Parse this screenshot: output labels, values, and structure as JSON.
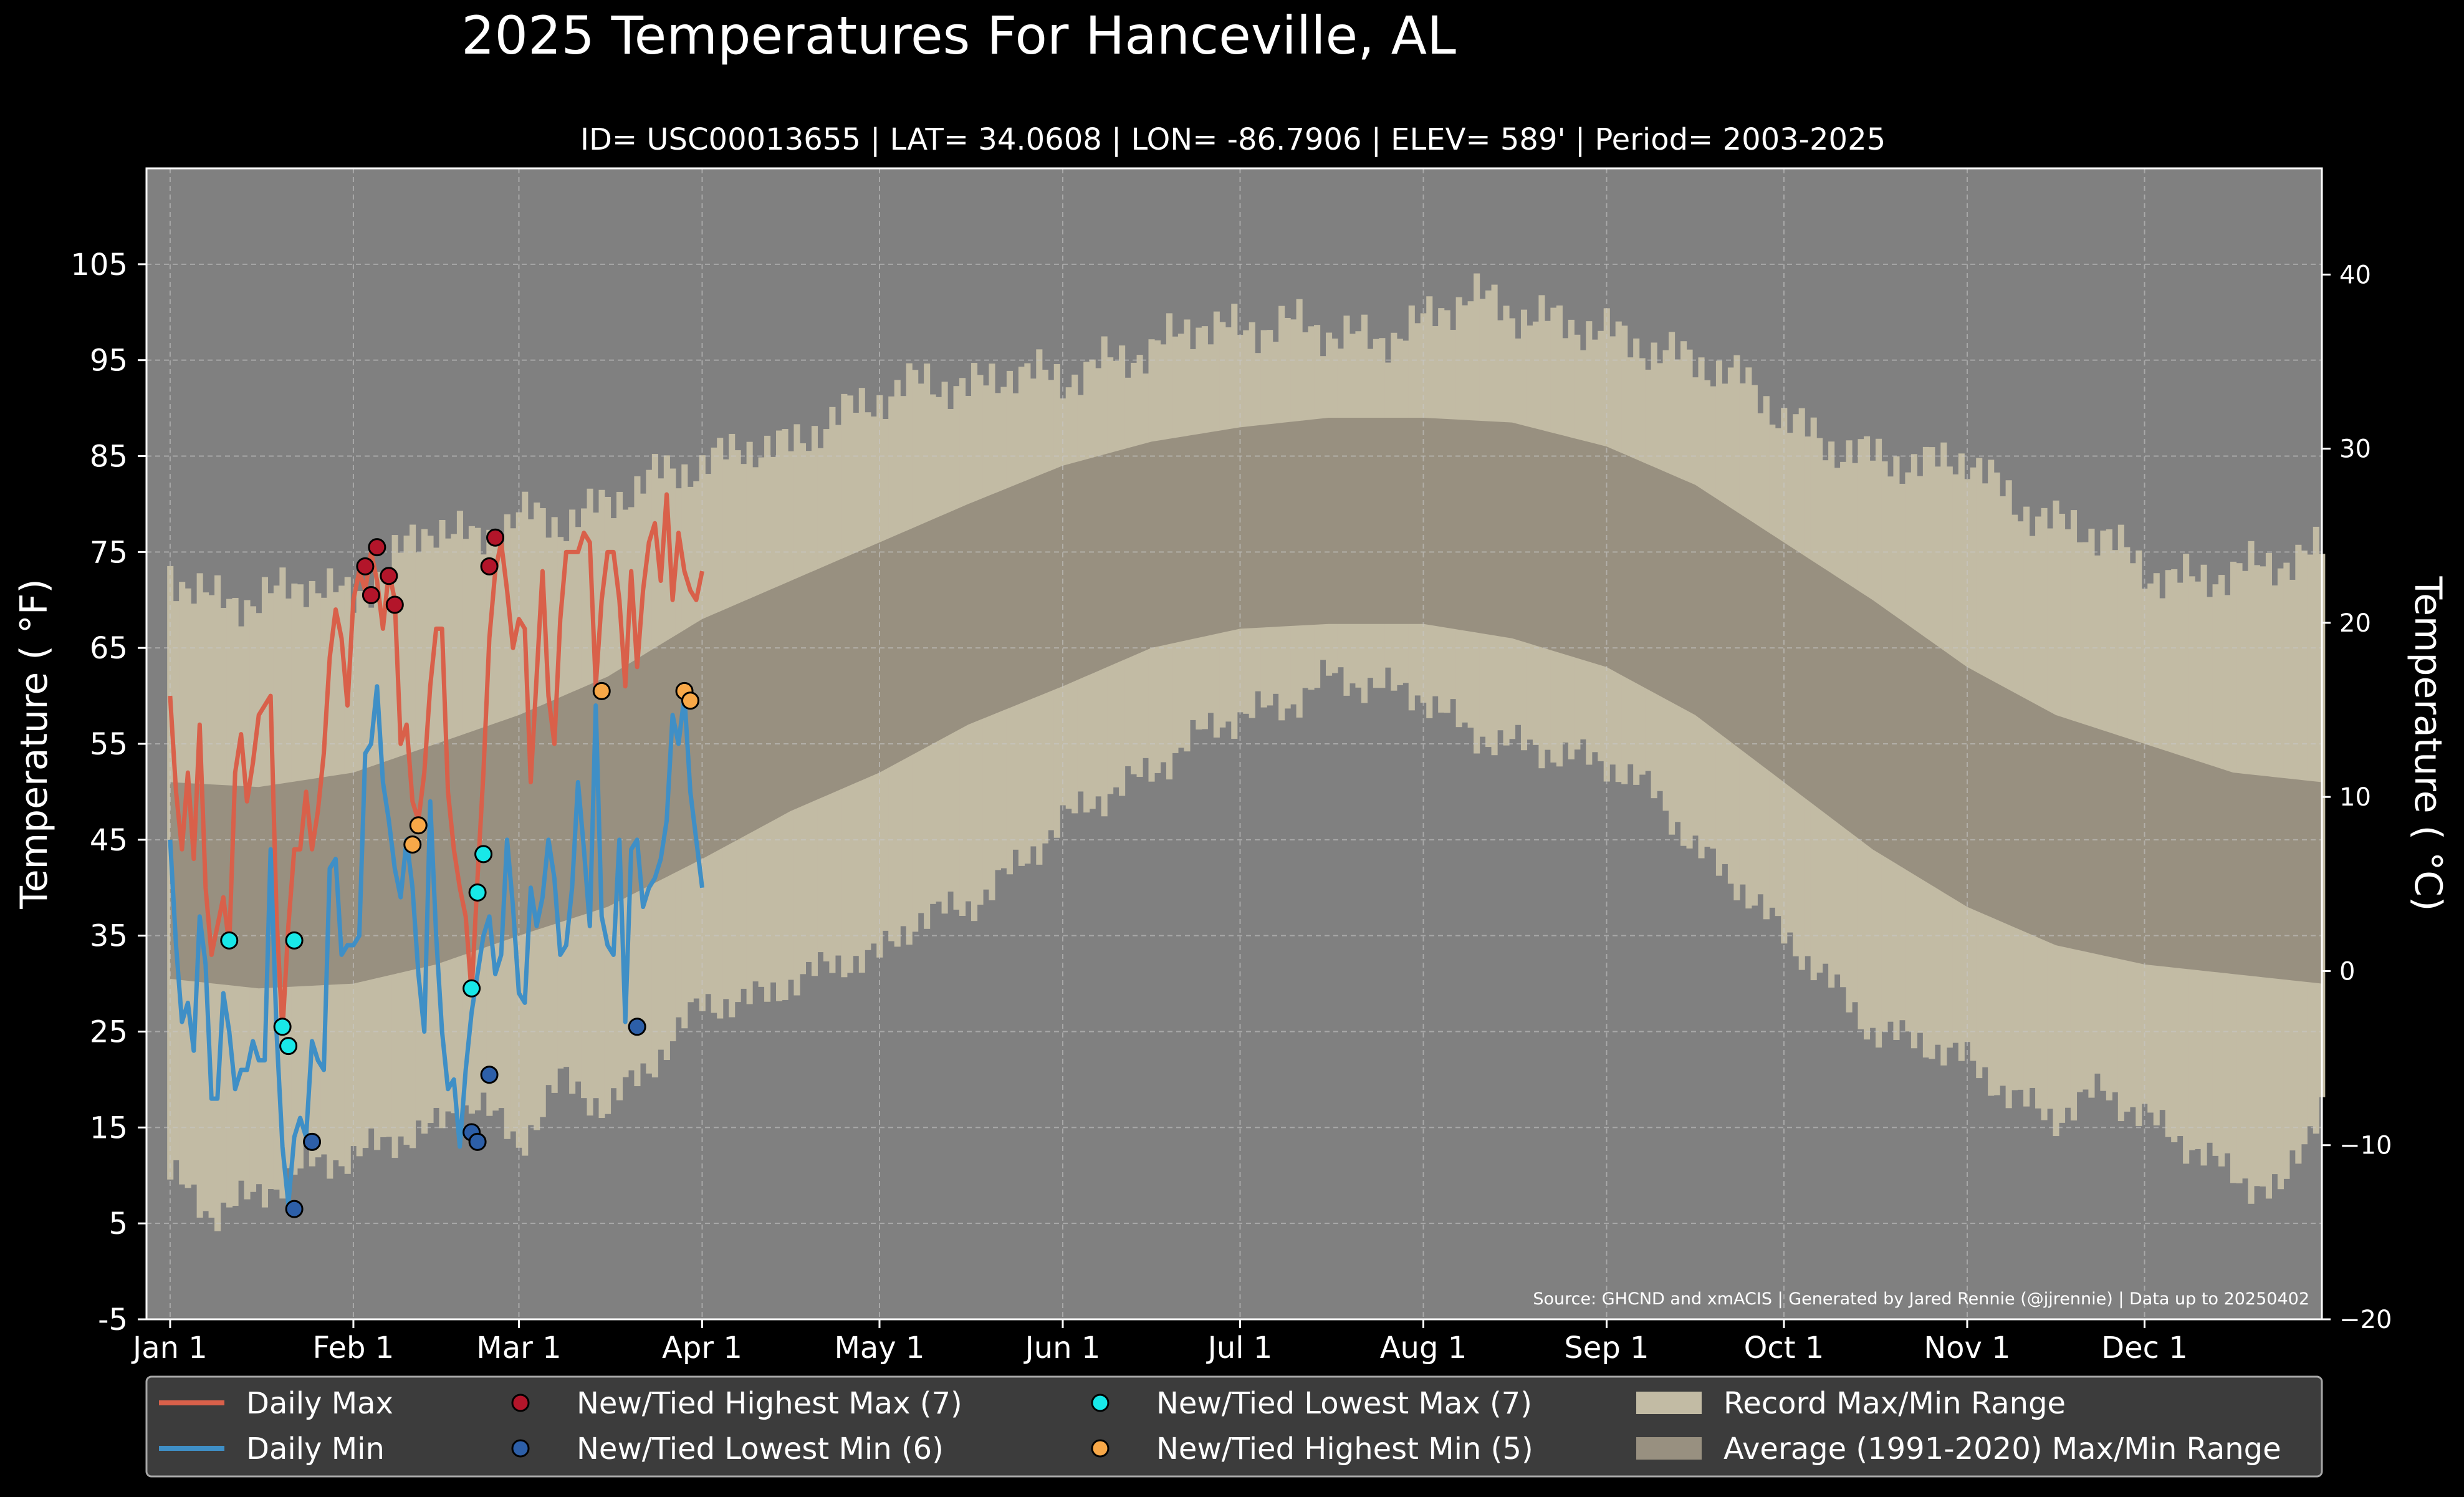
{
  "chart_data": {
    "type": "line",
    "title": "2025 Temperatures For Hanceville, AL",
    "subtitle": "ID= USC00013655 | LAT= 34.0608 | LON= -86.7906 | ELEV= 589' | Period= 2003-2025",
    "ylabel": "Temperature ( °F)",
    "ylabel_right": "Temperature ( °C)",
    "source": "Source: GHCND and xmACIS | Generated by Jared Rennie (@jjrennie) | Data up to 20250402",
    "ylim": [
      -5,
      115
    ],
    "ylim_right": [
      -20,
      46.1
    ],
    "yticks": [
      -5,
      5,
      15,
      25,
      35,
      45,
      55,
      65,
      75,
      85,
      95,
      105
    ],
    "yticks_right": [
      -20,
      -10,
      0,
      10,
      20,
      30,
      40
    ],
    "xlim": [
      -3,
      365
    ],
    "month_labels": [
      "Jan 1",
      "Feb 1",
      "Mar 1",
      "Apr 1",
      "May 1",
      "Jun 1",
      "Jul 1",
      "Aug 1",
      "Sep 1",
      "Oct 1",
      "Nov 1",
      "Dec 1"
    ],
    "month_days": [
      1,
      32,
      60,
      91,
      121,
      152,
      182,
      213,
      244,
      274,
      305,
      335
    ],
    "grid": true,
    "legend_position": "bottom",
    "colors": {
      "background": "#000000",
      "plot_background": "#808080",
      "record_range": "#c2bba4",
      "average_range": "#989080",
      "daily_max": "#d9604a",
      "daily_min": "#3f8fc6",
      "highest_max": "#b3152a",
      "lowest_min": "#2d5fa8",
      "lowest_max": "#18e8e8",
      "highest_min": "#f8a848"
    },
    "legend": [
      {
        "label": "Daily Max",
        "kind": "line",
        "color_key": "daily_max"
      },
      {
        "label": "Daily Min",
        "kind": "line",
        "color_key": "daily_min"
      },
      {
        "label": "New/Tied Highest Max (7)",
        "kind": "dot",
        "color_key": "highest_max"
      },
      {
        "label": "New/Tied Lowest Min (6)",
        "kind": "dot",
        "color_key": "lowest_min"
      },
      {
        "label": "New/Tied Lowest Max (7)",
        "kind": "dot",
        "color_key": "lowest_max"
      },
      {
        "label": "New/Tied Highest Min (5)",
        "kind": "dot",
        "color_key": "highest_min"
      },
      {
        "label": "Record Max/Min Range",
        "kind": "patch",
        "color_key": "record_range"
      },
      {
        "label": "Average (1991-2020) Max/Min Range",
        "kind": "patch",
        "color_key": "average_range"
      }
    ],
    "average_range": {
      "days": [
        1,
        16,
        32,
        46,
        60,
        75,
        91,
        106,
        121,
        136,
        152,
        167,
        182,
        197,
        213,
        228,
        244,
        259,
        274,
        289,
        305,
        320,
        335,
        350,
        365
      ],
      "max": [
        51,
        50.5,
        52,
        55,
        58,
        62,
        68,
        72,
        76,
        80,
        84,
        86.5,
        88,
        89,
        89,
        88.5,
        86,
        82,
        76,
        70,
        63,
        58,
        55,
        52,
        51
      ],
      "min": [
        30.5,
        29.5,
        30,
        32,
        35,
        38,
        43,
        48,
        52,
        57,
        61,
        65,
        67,
        67.5,
        67.5,
        66,
        63,
        58,
        51,
        44,
        38,
        34,
        32,
        31,
        30
      ]
    },
    "record_range": {
      "days": [
        1,
        8,
        16,
        24,
        32,
        40,
        46,
        53,
        60,
        67,
        75,
        83,
        91,
        98,
        106,
        113,
        121,
        128,
        136,
        144,
        152,
        160,
        167,
        175,
        182,
        190,
        197,
        205,
        213,
        221,
        228,
        236,
        244,
        252,
        259,
        267,
        274,
        282,
        289,
        297,
        305,
        313,
        320,
        328,
        335,
        343,
        350,
        358,
        365
      ],
      "max": [
        73,
        70,
        70,
        72,
        70,
        75,
        78,
        76,
        79,
        78,
        80,
        83,
        84,
        86,
        86,
        89,
        91,
        93,
        92,
        94,
        93,
        95,
        96,
        99,
        98,
        99,
        98,
        97,
        99,
        102,
        100,
        99,
        98,
        96,
        95,
        93,
        89,
        86,
        85,
        84,
        85,
        80,
        78,
        77,
        73,
        72,
        73,
        74,
        75
      ],
      "min": [
        10,
        6,
        8,
        11,
        12,
        14,
        15,
        18,
        13,
        20,
        17,
        22,
        28,
        28,
        30,
        32,
        33,
        37,
        38,
        42,
        47,
        50,
        52,
        56,
        58,
        59,
        62,
        61,
        60,
        56,
        55,
        54,
        53,
        50,
        44,
        40,
        35,
        30,
        25,
        24,
        22,
        18,
        16,
        19,
        16,
        13,
        10,
        8,
        18
      ]
    },
    "series": [
      {
        "name": "Daily Max",
        "days": [
          1,
          2,
          3,
          4,
          5,
          6,
          7,
          8,
          9,
          10,
          11,
          12,
          13,
          14,
          15,
          16,
          17,
          18,
          19,
          20,
          21,
          22,
          23,
          24,
          25,
          26,
          27,
          28,
          29,
          30,
          31,
          32,
          33,
          34,
          35,
          36,
          37,
          38,
          39,
          40,
          41,
          42,
          43,
          44,
          45,
          46,
          47,
          48,
          49,
          50,
          51,
          52,
          53,
          54,
          55,
          56,
          57,
          58,
          59,
          60,
          61,
          62,
          63,
          64,
          65,
          66,
          67,
          68,
          69,
          70,
          71,
          72,
          73,
          74,
          75,
          76,
          77,
          78,
          79,
          80,
          81,
          82,
          83,
          84,
          85,
          86,
          87,
          88,
          89,
          90,
          91
        ],
        "values": [
          60,
          50,
          44,
          52,
          43,
          57,
          40,
          33,
          36,
          39,
          34,
          52,
          56,
          49,
          53,
          58,
          59,
          60,
          37,
          25,
          36,
          44,
          44,
          50,
          44,
          48,
          54,
          64,
          69,
          66,
          59,
          70,
          73,
          71,
          75,
          72,
          67,
          73,
          70,
          55,
          57,
          49,
          47,
          52,
          61,
          67,
          67,
          50,
          44,
          40,
          37,
          29,
          41,
          52,
          66,
          73,
          76,
          71,
          65,
          68,
          67,
          51,
          62,
          73,
          60,
          55,
          68,
          75,
          75,
          75,
          77,
          76,
          61,
          70,
          75,
          75,
          70,
          61,
          73,
          63,
          71,
          76,
          78,
          72,
          81,
          70,
          77,
          73,
          71,
          70,
          73
        ]
      },
      {
        "name": "Daily Min",
        "days": [
          1,
          2,
          3,
          4,
          5,
          6,
          7,
          8,
          9,
          10,
          11,
          12,
          13,
          14,
          15,
          16,
          17,
          18,
          19,
          20,
          21,
          22,
          23,
          24,
          25,
          26,
          27,
          28,
          29,
          30,
          31,
          32,
          33,
          34,
          35,
          36,
          37,
          38,
          39,
          40,
          41,
          42,
          43,
          44,
          45,
          46,
          47,
          48,
          49,
          50,
          51,
          52,
          53,
          54,
          55,
          56,
          57,
          58,
          59,
          60,
          61,
          62,
          63,
          64,
          65,
          66,
          67,
          68,
          69,
          70,
          71,
          72,
          73,
          74,
          75,
          76,
          77,
          78,
          79,
          80,
          81,
          82,
          83,
          84,
          85,
          86,
          87,
          88,
          89,
          90,
          91
        ],
        "values": [
          45,
          34,
          26,
          28,
          23,
          37,
          32,
          18,
          18,
          29,
          25,
          19,
          21,
          21,
          24,
          22,
          22,
          44,
          25,
          13,
          7,
          14,
          16,
          14,
          24,
          22,
          21,
          42,
          43,
          33,
          34,
          34,
          35,
          54,
          55,
          61,
          51,
          47,
          42,
          39,
          45,
          40,
          31,
          25,
          49,
          35,
          25,
          19,
          20,
          13,
          21,
          27,
          31,
          35,
          37,
          31,
          33,
          45,
          38,
          29,
          28,
          40,
          36,
          39,
          45,
          41,
          33,
          34,
          40,
          51,
          44,
          36,
          59,
          37,
          34,
          33,
          45,
          26,
          44,
          45,
          38,
          40,
          41,
          43,
          47,
          58,
          55,
          60,
          50,
          45,
          40
        ]
      }
    ],
    "records": {
      "New/Tied Highest Max (7)": {
        "days": [
          34,
          35,
          36,
          38,
          39,
          55,
          56
        ],
        "values": [
          73.5,
          70.5,
          75.5,
          72.5,
          69.5,
          73.5,
          76.5
        ]
      },
      "New/Tied Lowest Min (6)": {
        "days": [
          22,
          25,
          52,
          53,
          55,
          80
        ],
        "values": [
          6.5,
          13.5,
          14.5,
          13.5,
          20.5,
          25.5
        ]
      },
      "New/Tied Lowest Max (7)": {
        "days": [
          11,
          20,
          21,
          22,
          52,
          53,
          54
        ],
        "values": [
          34.5,
          25.5,
          23.5,
          34.5,
          29.5,
          39.5,
          43.5
        ]
      },
      "New/Tied Highest Min (5)": {
        "days": [
          42,
          43,
          74,
          88,
          89
        ],
        "values": [
          44.5,
          46.5,
          60.5,
          60.5,
          59.5
        ]
      }
    }
  }
}
